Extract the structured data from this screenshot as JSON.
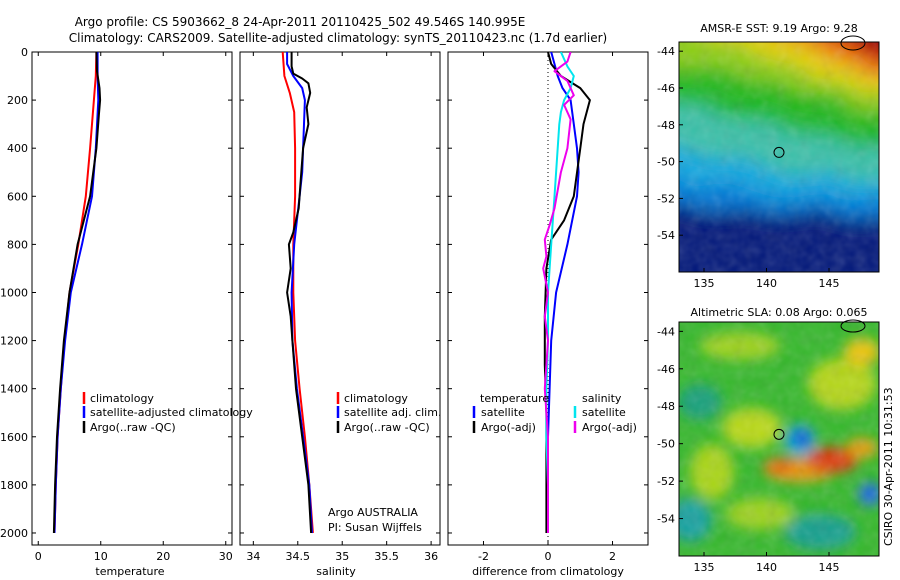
{
  "title": {
    "line1": "Argo profile: CS 5903662_8 24-Apr-2011 20110425_502 49.546S 140.995E",
    "line2": "Climatology: CARS2009. Satellite-adjusted climatology: synTS_20110423.nc (1.7d earlier)"
  },
  "side_label": "CSIRO 30-Apr-2011 10:31:53",
  "annotation": {
    "line1": "Argo AUSTRALIA",
    "line2": "PI: Susan Wijffels"
  },
  "colors": {
    "red": "#ff0000",
    "blue": "#0000ff",
    "black": "#000000",
    "cyan": "#00e5ee",
    "magenta": "#ee00ee"
  },
  "chart_data": [
    {
      "type": "line",
      "xlabel": "temperature",
      "ylabel": "",
      "xlim": [
        -1,
        31
      ],
      "ylim": [
        2050,
        0
      ],
      "xticks": [
        0,
        10,
        20,
        30
      ],
      "yticks": [
        0,
        200,
        400,
        600,
        800,
        1000,
        1200,
        1400,
        1600,
        1800,
        2000
      ],
      "legend": [
        "climatology",
        "satellite-adjusted climatology",
        "Argo(..raw -QC)"
      ],
      "series": [
        {
          "name": "climatology",
          "color": "red",
          "points": [
            [
              9.3,
              0
            ],
            [
              9.2,
              100
            ],
            [
              8.9,
              200
            ],
            [
              8.3,
              400
            ],
            [
              7.6,
              600
            ],
            [
              6.4,
              800
            ],
            [
              5.0,
              1000
            ],
            [
              4.2,
              1200
            ],
            [
              3.6,
              1400
            ],
            [
              3.1,
              1600
            ],
            [
              2.8,
              1800
            ],
            [
              2.6,
              2000
            ]
          ]
        },
        {
          "name": "satellite-adjusted climatology",
          "color": "blue",
          "points": [
            [
              9.5,
              0
            ],
            [
              9.5,
              100
            ],
            [
              9.6,
              200
            ],
            [
              9.2,
              400
            ],
            [
              8.6,
              600
            ],
            [
              7.0,
              800
            ],
            [
              5.2,
              1000
            ],
            [
              4.3,
              1200
            ],
            [
              3.6,
              1400
            ],
            [
              3.1,
              1600
            ],
            [
              2.8,
              1800
            ],
            [
              2.6,
              2000
            ]
          ]
        },
        {
          "name": "Argo(..raw -QC)",
          "color": "black",
          "points": [
            [
              9.3,
              0
            ],
            [
              9.4,
              80
            ],
            [
              9.8,
              150
            ],
            [
              9.9,
              200
            ],
            [
              9.7,
              260
            ],
            [
              9.3,
              400
            ],
            [
              8.3,
              600
            ],
            [
              6.3,
              800
            ],
            [
              5.0,
              1000
            ],
            [
              4.1,
              1200
            ],
            [
              3.5,
              1400
            ],
            [
              3.0,
              1600
            ],
            [
              2.7,
              1800
            ],
            [
              2.5,
              2000
            ]
          ]
        }
      ]
    },
    {
      "type": "line",
      "xlabel": "salinity",
      "ylabel": "",
      "xlim": [
        33.85,
        36.1
      ],
      "ylim": [
        2050,
        0
      ],
      "xticks": [
        34,
        34.5,
        35,
        35.5,
        36
      ],
      "legend": [
        "climatology",
        "satellite adj. clim.",
        "Argo(..raw -QC)"
      ],
      "series": [
        {
          "name": "climatology",
          "color": "red",
          "points": [
            [
              34.33,
              0
            ],
            [
              34.35,
              100
            ],
            [
              34.41,
              170
            ],
            [
              34.46,
              250
            ],
            [
              34.47,
              400
            ],
            [
              34.47,
              600
            ],
            [
              34.45,
              800
            ],
            [
              34.45,
              1000
            ],
            [
              34.47,
              1200
            ],
            [
              34.52,
              1400
            ],
            [
              34.58,
              1600
            ],
            [
              34.63,
              1800
            ],
            [
              34.67,
              2000
            ]
          ]
        },
        {
          "name": "satellite adj. clim.",
          "color": "blue",
          "points": [
            [
              34.38,
              0
            ],
            [
              34.38,
              50
            ],
            [
              34.45,
              100
            ],
            [
              34.55,
              150
            ],
            [
              34.58,
              200
            ],
            [
              34.57,
              300
            ],
            [
              34.56,
              400
            ],
            [
              34.55,
              500
            ],
            [
              34.52,
              600
            ],
            [
              34.46,
              800
            ],
            [
              34.43,
              1000
            ],
            [
              34.44,
              1200
            ],
            [
              34.49,
              1400
            ],
            [
              34.56,
              1600
            ],
            [
              34.63,
              1800
            ],
            [
              34.66,
              2000
            ]
          ]
        },
        {
          "name": "Argo(..raw -QC)",
          "color": "black",
          "points": [
            [
              34.43,
              0
            ],
            [
              34.43,
              60
            ],
            [
              34.45,
              90
            ],
            [
              34.55,
              110
            ],
            [
              34.62,
              130
            ],
            [
              34.64,
              170
            ],
            [
              34.6,
              230
            ],
            [
              34.62,
              300
            ],
            [
              34.56,
              400
            ],
            [
              34.53,
              550
            ],
            [
              34.51,
              650
            ],
            [
              34.45,
              750
            ],
            [
              34.4,
              800
            ],
            [
              34.42,
              900
            ],
            [
              34.38,
              1000
            ],
            [
              34.42,
              1100
            ],
            [
              34.44,
              1200
            ],
            [
              34.48,
              1400
            ],
            [
              34.55,
              1600
            ],
            [
              34.62,
              1800
            ],
            [
              34.65,
              2000
            ]
          ]
        }
      ]
    },
    {
      "type": "line",
      "xlabel": "difference from climatology",
      "ylabel": "",
      "xlim": [
        -3.1,
        3.1
      ],
      "ylim": [
        2050,
        0
      ],
      "xticks": [
        -2,
        0,
        2
      ],
      "legend_title_left": "temperature",
      "legend_title_right": "salinity",
      "legend": [
        "satellite",
        "Argo(-adj)",
        "satellite",
        "Argo(-adj)"
      ],
      "series": [
        {
          "name": "temperature satellite",
          "color": "blue",
          "points": [
            [
              0.1,
              0
            ],
            [
              0.2,
              50
            ],
            [
              0.3,
              100
            ],
            [
              0.45,
              150
            ],
            [
              0.7,
              200
            ],
            [
              0.8,
              300
            ],
            [
              0.9,
              400
            ],
            [
              0.95,
              500
            ],
            [
              0.9,
              600
            ],
            [
              0.6,
              800
            ],
            [
              0.25,
              1000
            ],
            [
              0.1,
              1200
            ],
            [
              0.05,
              1400
            ],
            [
              0.0,
              1600
            ],
            [
              0.0,
              1800
            ],
            [
              0.0,
              2000
            ]
          ]
        },
        {
          "name": "temperature Argo(-adj)",
          "color": "black",
          "points": [
            [
              0.0,
              0
            ],
            [
              0.1,
              50
            ],
            [
              0.4,
              100
            ],
            [
              1.0,
              150
            ],
            [
              1.3,
              200
            ],
            [
              1.1,
              300
            ],
            [
              1.0,
              400
            ],
            [
              0.8,
              600
            ],
            [
              0.5,
              700
            ],
            [
              0.1,
              780
            ],
            [
              -0.05,
              900
            ],
            [
              -0.1,
              1100
            ],
            [
              -0.1,
              1300
            ],
            [
              -0.05,
              1500
            ],
            [
              -0.05,
              1800
            ],
            [
              -0.05,
              2000
            ]
          ]
        },
        {
          "name": "salinity satellite",
          "color": "cyan",
          "points": [
            [
              0.4,
              0
            ],
            [
              0.6,
              60
            ],
            [
              0.8,
              100
            ],
            [
              0.7,
              150
            ],
            [
              0.5,
              200
            ],
            [
              0.4,
              250
            ],
            [
              0.35,
              300
            ],
            [
              0.3,
              400
            ],
            [
              0.2,
              600
            ],
            [
              0.1,
              800
            ],
            [
              0.0,
              1000
            ],
            [
              0.0,
              1200
            ],
            [
              -0.05,
              1400
            ],
            [
              -0.05,
              1600
            ],
            [
              0.0,
              1800
            ],
            [
              0.0,
              2000
            ]
          ]
        },
        {
          "name": "salinity Argo(-adj)",
          "color": "magenta",
          "points": [
            [
              0.7,
              0
            ],
            [
              0.6,
              40
            ],
            [
              0.2,
              80
            ],
            [
              0.6,
              120
            ],
            [
              0.8,
              180
            ],
            [
              0.5,
              220
            ],
            [
              0.7,
              280
            ],
            [
              0.6,
              400
            ],
            [
              0.4,
              500
            ],
            [
              0.2,
              650
            ],
            [
              0.05,
              720
            ],
            [
              -0.1,
              780
            ],
            [
              -0.05,
              850
            ],
            [
              -0.15,
              900
            ],
            [
              0.0,
              1000
            ],
            [
              -0.1,
              1100
            ],
            [
              0.0,
              1200
            ],
            [
              -0.05,
              1300
            ],
            [
              -0.1,
              1400
            ],
            [
              0.0,
              1600
            ],
            [
              0.0,
              1800
            ],
            [
              0.0,
              2000
            ]
          ]
        }
      ]
    },
    {
      "type": "heatmap",
      "title": "AMSR-E SST: 9.19 Argo: 9.28",
      "xlim": [
        133,
        149
      ],
      "ylim": [
        -56,
        -43.5
      ],
      "xticks": [
        135,
        140,
        145
      ],
      "yticks": [
        -44,
        -46,
        -48,
        -50,
        -52,
        -54
      ],
      "marker": {
        "lon": 141,
        "lat": -49.5
      }
    },
    {
      "type": "heatmap",
      "title": "Altimetric SLA: 0.08 Argo: 0.065",
      "xlim": [
        133,
        149
      ],
      "ylim": [
        -56,
        -43.5
      ],
      "xticks": [
        135,
        140,
        145
      ],
      "yticks": [
        -44,
        -46,
        -48,
        -50,
        -52,
        -54
      ],
      "marker": {
        "lon": 141,
        "lat": -49.5
      }
    }
  ]
}
